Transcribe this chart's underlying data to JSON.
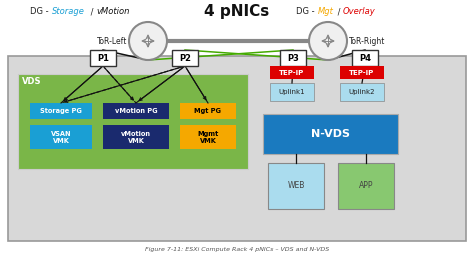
{
  "title": "4 pNICs",
  "subtitle": "Figure 7-11: ESXi Compute Rack 4 pNICs – VDS and N-VDS",
  "tor_left": "ToR-Left",
  "tor_right": "ToR-Right",
  "bg_box_color": "#d8d8d8",
  "bg_box_edge": "#999999",
  "vds_color": "#7ab648",
  "nvds_color": "#1a7abf",
  "storage_pg_color": "#1a9fd4",
  "vmotion_pg_color": "#1a2a6e",
  "mgt_pg_color": "#f5a800",
  "vsan_vmk_color": "#1a9fd4",
  "vmotion_vmk_color": "#1a2a6e",
  "mgmt_vmk_color": "#f5a800",
  "tep_ip_color": "#dd0000",
  "uplink_color": "#aadcee",
  "web_color": "#aadcee",
  "app_color": "#88c870",
  "p_box_color": "#ffffff",
  "p_box_edge": "#333333",
  "switch_color": "#888888",
  "green_line_color": "#44aa00",
  "black_line_color": "#111111",
  "dg_left_storage_color": "#1a9fd4",
  "dg_left_vmotion_color": "#111111",
  "dg_right_mgt_color": "#f5a800",
  "dg_right_overlay_color": "#dd0000"
}
